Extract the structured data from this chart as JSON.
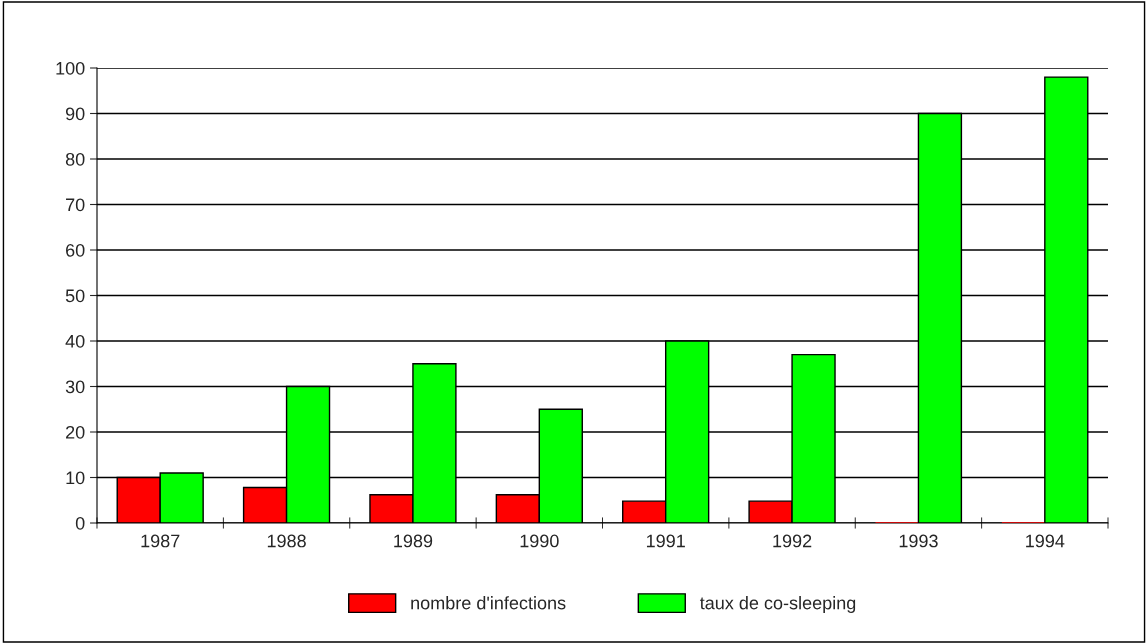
{
  "chart_data": {
    "type": "bar",
    "categories": [
      "1987",
      "1988",
      "1989",
      "1990",
      "1991",
      "1992",
      "1993",
      "1994"
    ],
    "series": [
      {
        "name": "nombre d'infections",
        "color": "#ff0000",
        "values": [
          10,
          7.8,
          6.2,
          6.2,
          4.8,
          4.8,
          0,
          0
        ]
      },
      {
        "name": "taux de co-sleeping",
        "color": "#00ff00",
        "values": [
          11,
          30,
          35,
          25,
          40,
          37,
          90,
          98
        ]
      }
    ],
    "ylim": [
      0,
      100
    ],
    "yticks": [
      0,
      10,
      20,
      30,
      40,
      50,
      60,
      70,
      80,
      90,
      100
    ],
    "grid": "y",
    "legend": "bottom"
  }
}
